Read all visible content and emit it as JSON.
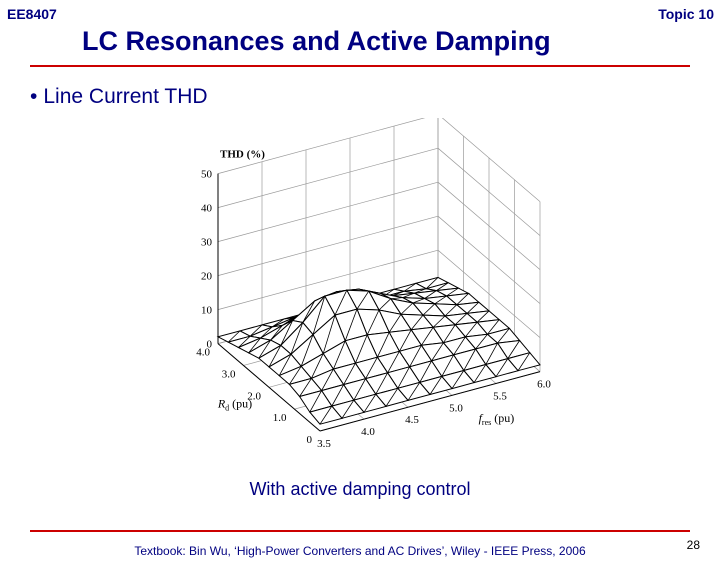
{
  "header": {
    "course": "EE8407",
    "topic": "Topic 10",
    "title": "LC Resonances and Active Damping"
  },
  "bullet": {
    "symbol": "•",
    "text": "Line Current THD"
  },
  "caption": "With active damping control",
  "footer": {
    "textbook": "Textbook: Bin Wu, ‘High-Power Converters and AC Drives’, Wiley - IEEE Press, 2006",
    "page_number": "28"
  },
  "colors": {
    "title": "#000080",
    "rule": "#cc0000"
  },
  "chart_data": {
    "type": "surface",
    "title": "",
    "zlabel": "THD (%)",
    "xlabel": "f_res (pu)",
    "ylabel": "R_d (pu)",
    "x_ticks": [
      "3.5",
      "4.0",
      "4.5",
      "5.0",
      "5.5",
      "6.0"
    ],
    "y_ticks": [
      "0",
      "1.0",
      "2.0",
      "3.0",
      "4.0"
    ],
    "z_ticks": [
      "0",
      "10",
      "20",
      "30",
      "40",
      "50"
    ],
    "xlim": [
      3.5,
      6.0
    ],
    "ylim": [
      0,
      4.0
    ],
    "zlim": [
      0,
      50
    ],
    "grid": true,
    "x": [
      3.5,
      3.75,
      4.0,
      4.25,
      4.5,
      4.75,
      5.0,
      5.25,
      5.5,
      5.75,
      6.0
    ],
    "y": [
      0,
      0.4,
      0.8,
      1.2,
      1.6,
      2.0,
      2.4,
      2.8,
      3.2,
      3.6,
      4.0
    ],
    "z": [
      [
        2,
        2,
        2,
        2,
        2,
        2,
        2,
        2,
        2,
        2,
        2
      ],
      [
        3,
        3,
        3,
        3,
        3,
        3,
        3,
        3,
        3,
        3,
        3
      ],
      [
        5,
        5,
        5,
        5,
        5,
        5,
        5,
        5,
        5,
        5,
        4
      ],
      [
        6,
        6,
        7,
        7,
        7,
        7,
        7,
        6,
        6,
        5,
        5
      ],
      [
        6,
        7,
        9,
        11,
        11,
        10,
        9,
        8,
        7,
        6,
        5
      ],
      [
        6,
        8,
        12,
        16,
        16,
        14,
        11,
        9,
        7,
        6,
        5
      ],
      [
        6,
        8,
        13,
        19,
        19,
        17,
        13,
        10,
        8,
        6,
        5
      ],
      [
        5,
        7,
        11,
        15,
        16,
        15,
        12,
        9,
        7,
        6,
        5
      ],
      [
        4,
        5,
        7,
        9,
        10,
        9,
        8,
        7,
        6,
        5,
        4
      ],
      [
        3,
        3,
        4,
        5,
        5,
        5,
        5,
        4,
        4,
        3,
        3
      ],
      [
        2,
        2,
        2,
        2,
        2,
        2,
        2,
        2,
        2,
        2,
        2
      ]
    ]
  }
}
